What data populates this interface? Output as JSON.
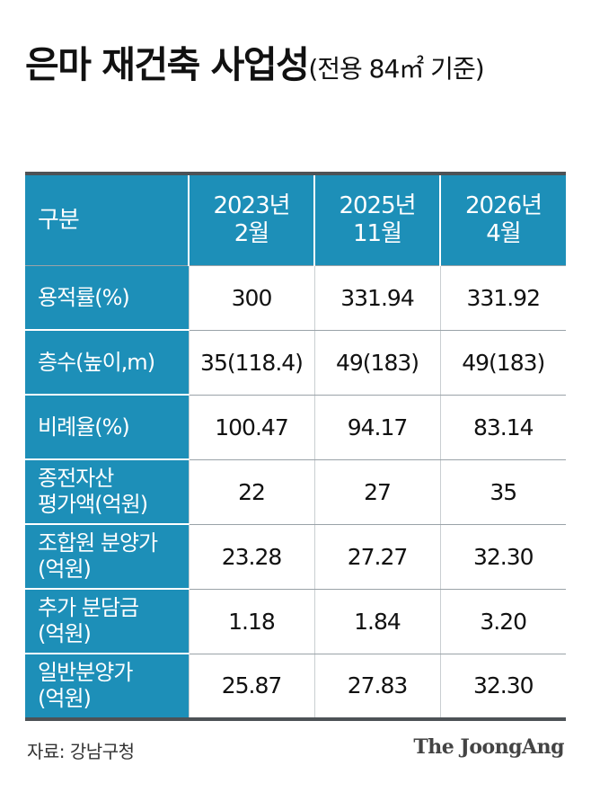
{
  "title": {
    "main": "은마 재건축 사업성",
    "sub": "(전용 84㎡ 기준)"
  },
  "colors": {
    "header_bg": "#1d8fb8",
    "rule": "#4d5256"
  },
  "chart_data": {
    "type": "table",
    "header": {
      "label": "구분",
      "columns": [
        {
          "line1": "2023년",
          "line2": "2월"
        },
        {
          "line1": "2025년",
          "line2": "11월"
        },
        {
          "line1": "2026년",
          "line2": "4월"
        }
      ]
    },
    "rows": [
      {
        "label": [
          "용적률(%)"
        ],
        "values": [
          "300",
          "331.94",
          "331.92"
        ]
      },
      {
        "label": [
          "층수(높이,m)"
        ],
        "values": [
          "35(118.4)",
          "49(183)",
          "49(183)"
        ]
      },
      {
        "label": [
          "비례율(%)"
        ],
        "values": [
          "100.47",
          "94.17",
          "83.14"
        ]
      },
      {
        "label": [
          "종전자산",
          "평가액(억원)"
        ],
        "values": [
          "22",
          "27",
          "35"
        ]
      },
      {
        "label": [
          "조합원 분양가",
          "(억원)"
        ],
        "values": [
          "23.28",
          "27.27",
          "32.30"
        ]
      },
      {
        "label": [
          "추가 분담금",
          "(억원)"
        ],
        "values": [
          "1.18",
          "1.84",
          "3.20"
        ]
      },
      {
        "label": [
          "일반분양가",
          "(억원)"
        ],
        "values": [
          "25.87",
          "27.83",
          "32.30"
        ]
      }
    ]
  },
  "source": "자료: 강남구청",
  "brand": "The JoongAng"
}
